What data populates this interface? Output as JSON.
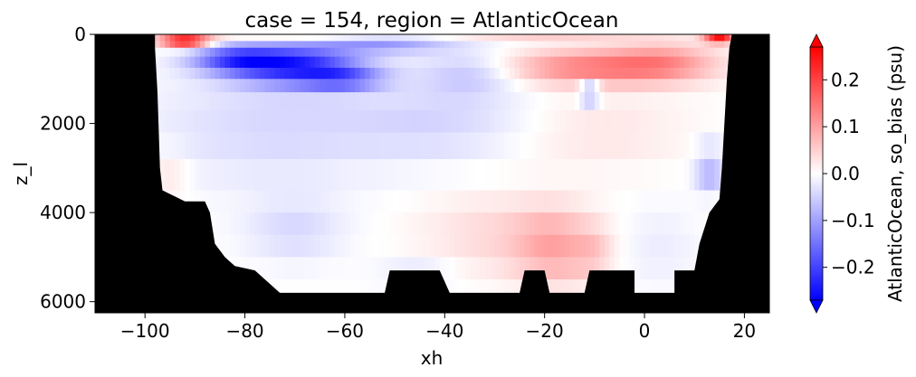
{
  "chart_data": {
    "type": "heatmap",
    "title": "case = 154, region = AtlanticOcean",
    "xlabel": "xh",
    "ylabel": "z_l",
    "xlim": [
      -110,
      25
    ],
    "ylim": [
      6250,
      0
    ],
    "y_inverted": true,
    "x_ticks": [
      -100,
      -80,
      -60,
      -40,
      -20,
      0,
      20
    ],
    "x_tick_labels": [
      "−100",
      "−80",
      "−60",
      "−40",
      "−20",
      "0",
      "20"
    ],
    "y_ticks": [
      0,
      2000,
      4000,
      6000
    ],
    "y_tick_labels": [
      "0",
      "2000",
      "4000",
      "6000"
    ],
    "colorbar": {
      "label": "AtlanticOcean, so_bias (psu)",
      "cmap": "bwr",
      "vmin": -0.27,
      "vmax": 0.27,
      "extend": "both",
      "ticks": [
        -0.2,
        -0.1,
        0.0,
        0.1,
        0.2
      ],
      "tick_labels": [
        "−0.2",
        "−0.1",
        "0.0",
        "0.1",
        "0.2"
      ]
    },
    "mask_color": "#000000",
    "depth_levels": [
      0,
      150,
      300,
      500,
      750,
      1000,
      1300,
      1700,
      2200,
      2800,
      3500,
      4000,
      4500,
      5000,
      5500,
      6000,
      6250
    ],
    "column_width_deg": 1,
    "land_boundary": [
      [
        -110,
        0
      ],
      [
        -98,
        0
      ],
      [
        -98,
        300
      ],
      [
        -97.5,
        1300
      ],
      [
        -97,
        3000
      ],
      [
        -96.5,
        3500
      ],
      [
        -92,
        3750
      ],
      [
        -88,
        3750
      ],
      [
        -87,
        4000
      ],
      [
        -86,
        4700
      ],
      [
        -84,
        5000
      ],
      [
        -82,
        5200
      ],
      [
        -78,
        5300
      ],
      [
        -73,
        5800
      ],
      [
        -52,
        5800
      ],
      [
        -51,
        5300
      ],
      [
        -41,
        5300
      ],
      [
        -39,
        5800
      ],
      [
        -25,
        5800
      ],
      [
        -24,
        5300
      ],
      [
        -20,
        5300
      ],
      [
        -19,
        5800
      ],
      [
        -12,
        5800
      ],
      [
        -11,
        5300
      ],
      [
        -2,
        5300
      ],
      [
        -2,
        5800
      ],
      [
        6,
        5800
      ],
      [
        6,
        5300
      ],
      [
        10,
        5300
      ],
      [
        11,
        4700
      ],
      [
        13,
        4000
      ],
      [
        15,
        3700
      ],
      [
        15.5,
        3000
      ],
      [
        16,
        2000
      ],
      [
        16.5,
        1000
      ],
      [
        17,
        300
      ],
      [
        17.5,
        0
      ],
      [
        25,
        0
      ]
    ],
    "anomalies": [
      {
        "x": -92,
        "z": 150,
        "rx": 5,
        "rz": 150,
        "value": 0.27
      },
      {
        "x": -70,
        "z": 700,
        "rx": 13,
        "rz": 450,
        "value": -0.22
      },
      {
        "x": -82,
        "z": 550,
        "rx": 9,
        "rz": 300,
        "value": -0.15
      },
      {
        "x": -60,
        "z": 1000,
        "rx": 8,
        "rz": 250,
        "value": -0.12
      },
      {
        "x": -52,
        "z": 200,
        "rx": 14,
        "rz": 220,
        "value": -0.1
      },
      {
        "x": -35,
        "z": 900,
        "rx": 10,
        "rz": 500,
        "value": -0.06
      },
      {
        "x": -12,
        "z": 750,
        "rx": 16,
        "rz": 400,
        "value": 0.13
      },
      {
        "x": 4,
        "z": 650,
        "rx": 11,
        "rz": 450,
        "value": 0.1
      },
      {
        "x": -11,
        "z": 1300,
        "rx": 2,
        "rz": 200,
        "value": -0.17
      },
      {
        "x": -75,
        "z": 2100,
        "rx": 25,
        "rz": 1300,
        "value": -0.04
      },
      {
        "x": -40,
        "z": 2000,
        "rx": 20,
        "rz": 800,
        "value": -0.04
      },
      {
        "x": -10,
        "z": 2200,
        "rx": 18,
        "rz": 800,
        "value": 0.03
      },
      {
        "x": 13,
        "z": 3000,
        "rx": 3,
        "rz": 500,
        "value": -0.08
      },
      {
        "x": -95,
        "z": 3200,
        "rx": 4,
        "rz": 600,
        "value": 0.03
      },
      {
        "x": -70,
        "z": 4400,
        "rx": 10,
        "rz": 700,
        "value": -0.04
      },
      {
        "x": -30,
        "z": 4500,
        "rx": 15,
        "rz": 900,
        "value": 0.04
      },
      {
        "x": -18,
        "z": 4800,
        "rx": 8,
        "rz": 900,
        "value": 0.08
      },
      {
        "x": -10,
        "z": 4900,
        "rx": 4,
        "rz": 600,
        "value": 0.04
      },
      {
        "x": 3,
        "z": 4800,
        "rx": 8,
        "rz": 900,
        "value": -0.02
      },
      {
        "x": -45,
        "z": 5400,
        "rx": 8,
        "rz": 400,
        "value": -0.03
      },
      {
        "x": 15,
        "z": 80,
        "rx": 3,
        "rz": 120,
        "value": 0.25
      },
      {
        "x": -65,
        "z": 40,
        "rx": 25,
        "rz": 60,
        "value": 0.08
      },
      {
        "x": -20,
        "z": 40,
        "rx": 20,
        "rz": 60,
        "value": 0.06
      }
    ]
  }
}
